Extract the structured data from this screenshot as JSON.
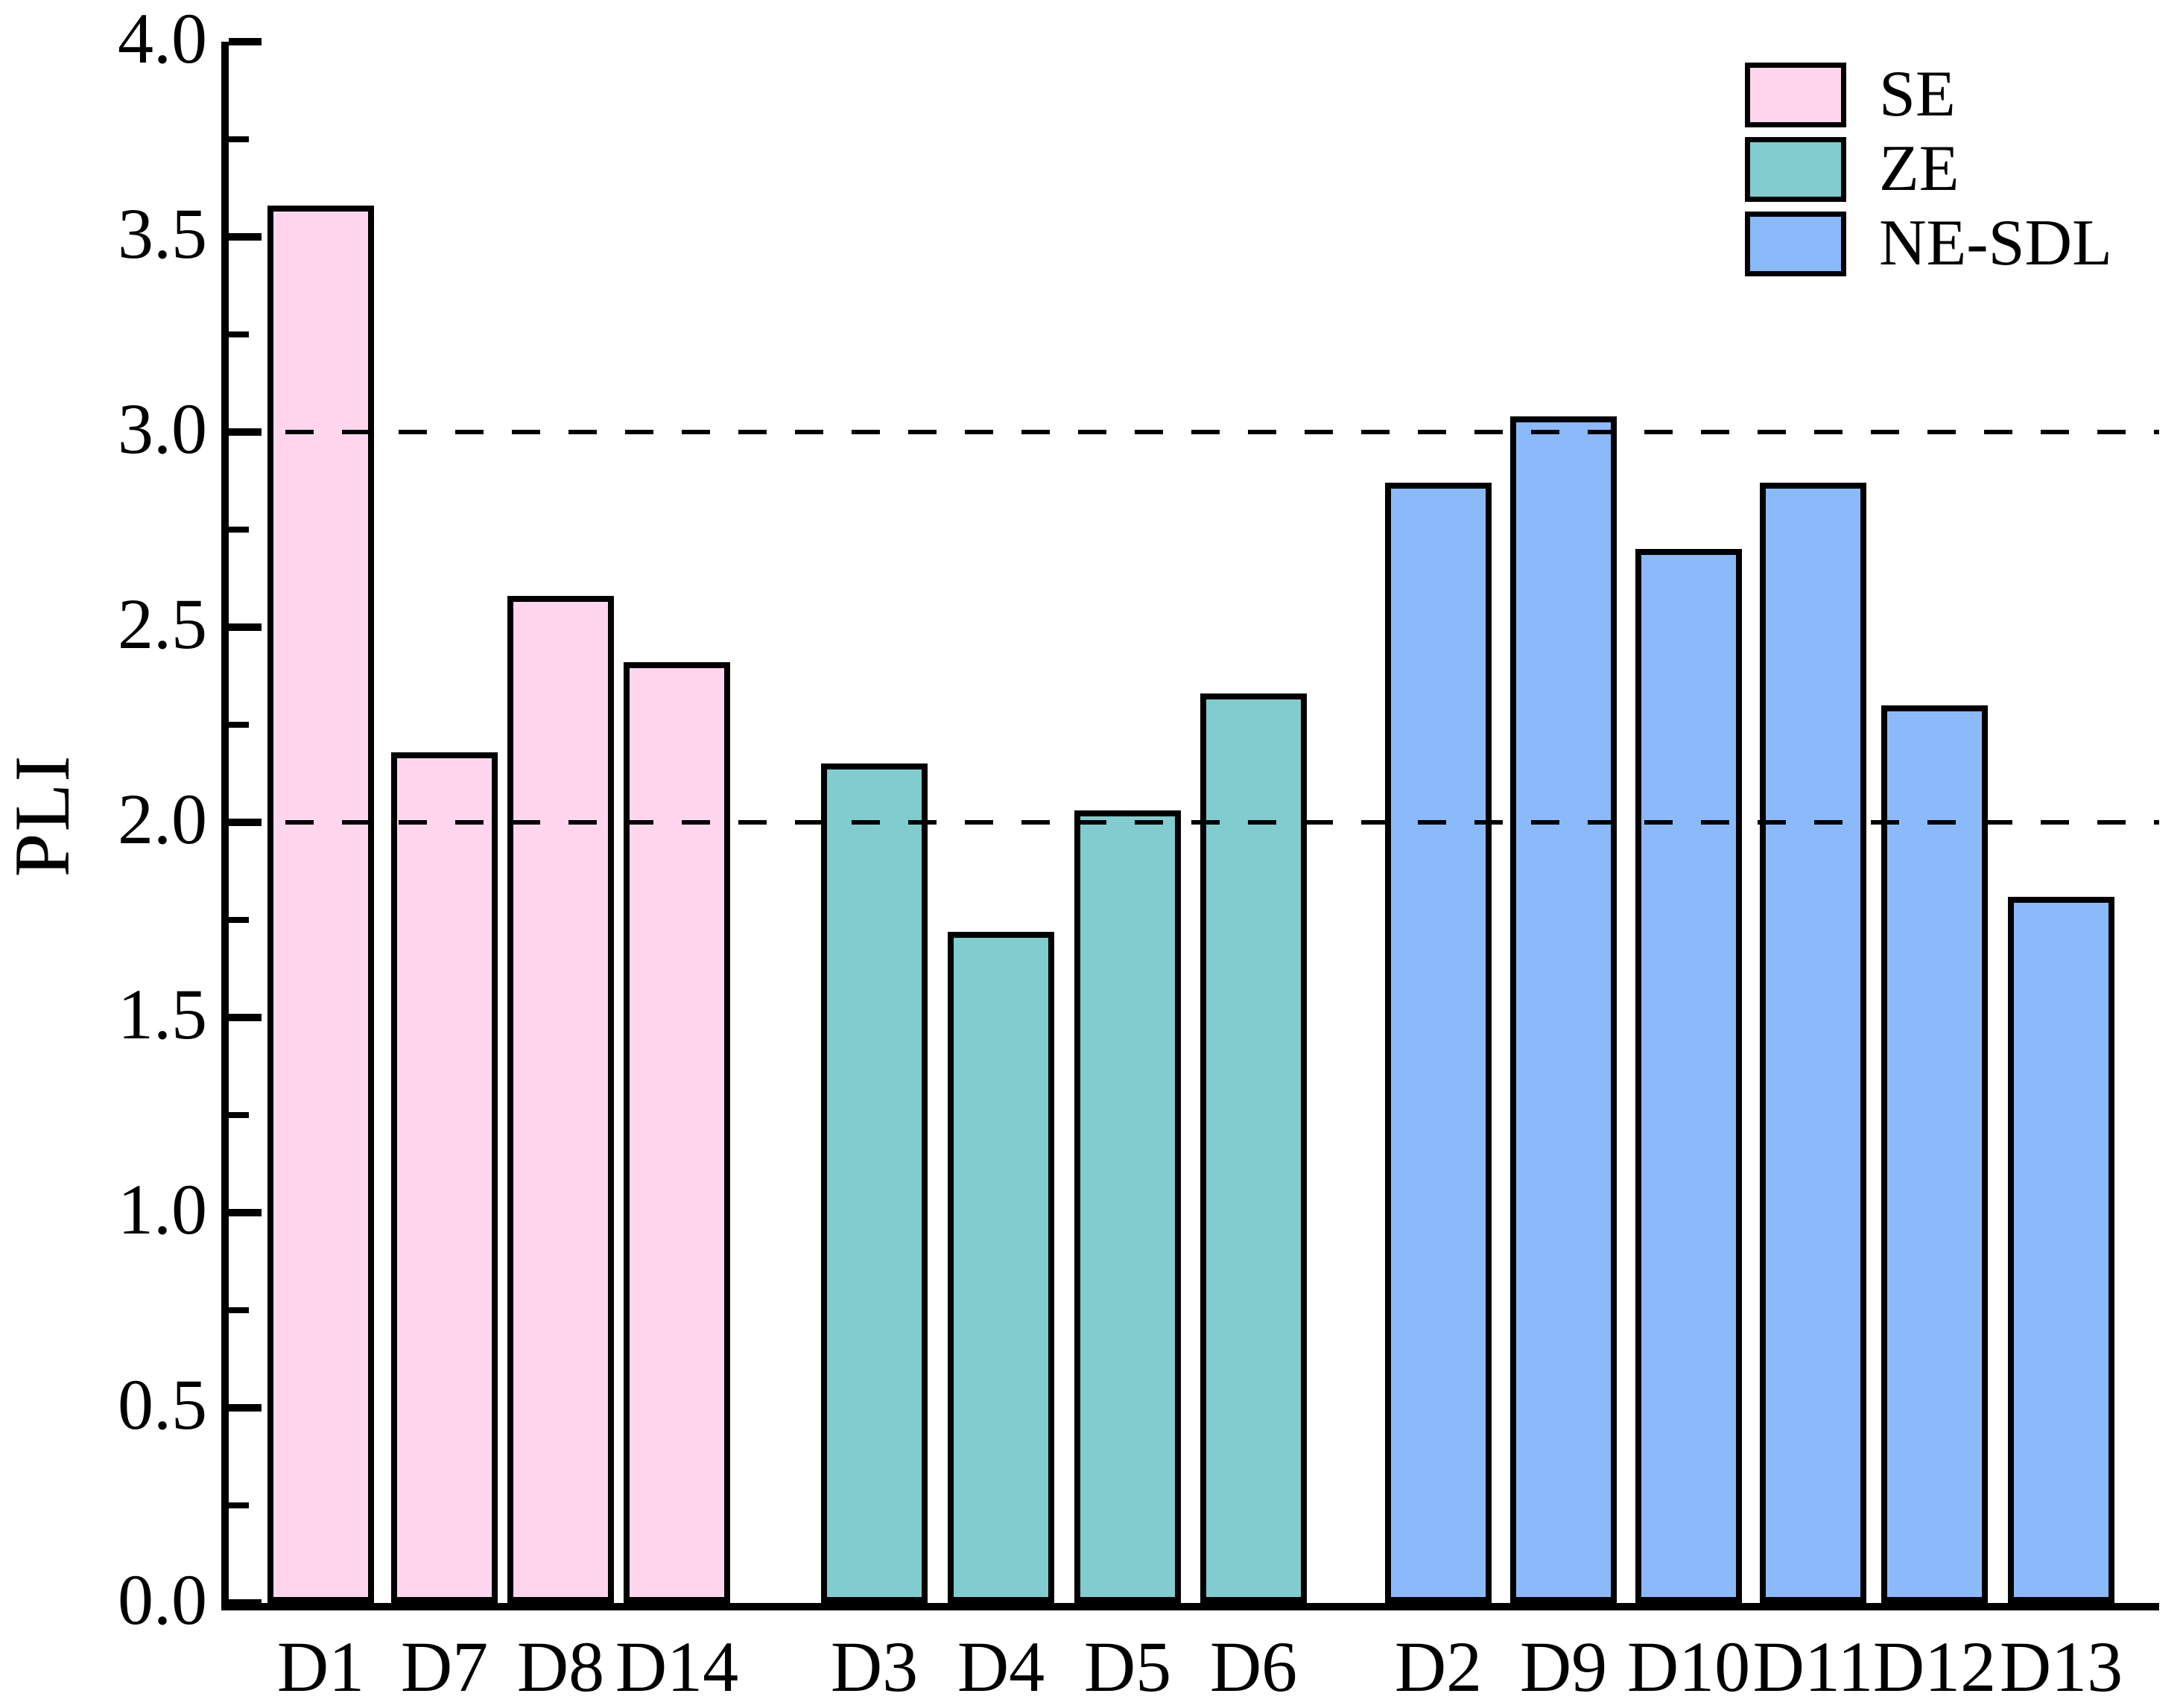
{
  "chart_data": {
    "type": "bar",
    "title": "",
    "xlabel": "",
    "ylabel": "PLI",
    "ylim": [
      0.0,
      4.0
    ],
    "ytick_step": 0.5,
    "ytick_labels": [
      "0.0",
      "0.5",
      "1.0",
      "1.5",
      "2.0",
      "2.5",
      "3.0",
      "3.5",
      "4.0"
    ],
    "minor_tick_step": 0.25,
    "reference_lines": [
      2.0,
      3.0
    ],
    "grid": "horizontal dashed lines at y=2.0 and y=3.0, drawn over bars",
    "axis_color": "#000000",
    "background_color": "#FFFFFF",
    "legend": {
      "position": "top-right",
      "entries": [
        "SE",
        "ZE",
        "NE-SDL"
      ]
    },
    "categories": [
      "D1",
      "D7",
      "D8",
      "D14",
      "D3",
      "D4",
      "D5",
      "D6",
      "D2",
      "D9",
      "D10",
      "D11",
      "D12",
      "D13"
    ],
    "series": [
      {
        "name": "SE",
        "color": "#FFD6EE",
        "points": [
          {
            "label": "D1",
            "value": 3.58
          },
          {
            "label": "D7",
            "value": 2.18
          },
          {
            "label": "D8",
            "value": 2.58
          },
          {
            "label": "D14",
            "value": 2.41
          }
        ]
      },
      {
        "name": "ZE",
        "color": "#80CCCE",
        "points": [
          {
            "label": "D3",
            "value": 2.15
          },
          {
            "label": "D4",
            "value": 1.72
          },
          {
            "label": "D5",
            "value": 2.03
          },
          {
            "label": "D6",
            "value": 2.33
          }
        ]
      },
      {
        "name": "NE-SDL",
        "color": "#8BBAFB",
        "points": [
          {
            "label": "D2",
            "value": 2.87
          },
          {
            "label": "D9",
            "value": 3.04
          },
          {
            "label": "D10",
            "value": 2.7
          },
          {
            "label": "D11",
            "value": 2.87
          },
          {
            "label": "D12",
            "value": 2.3
          },
          {
            "label": "D13",
            "value": 1.81
          }
        ]
      }
    ]
  }
}
